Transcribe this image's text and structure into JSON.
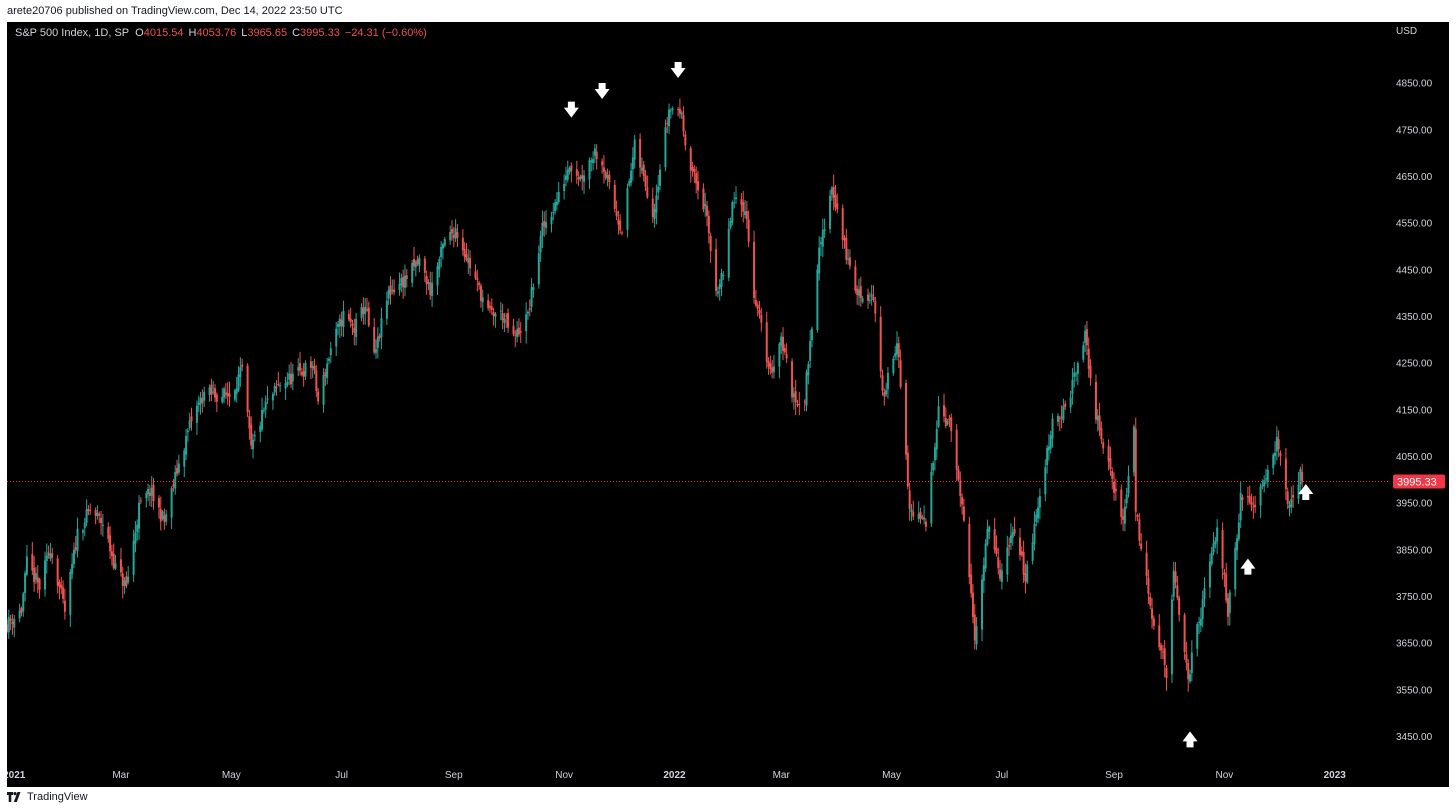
{
  "header": {
    "published": "arete20706 published on TradingView.com, Dec 14, 2022 23:50 UTC"
  },
  "legend": {
    "symbol": "S&P 500 Index, 1D, SP",
    "o_label": "O",
    "o_value": "4015.54",
    "h_label": "H",
    "h_value": "4053.76",
    "l_label": "L",
    "l_value": "3965.65",
    "c_label": "C",
    "c_value": "3995.33",
    "change": "−24.31 (−0.60%)"
  },
  "currency": "USD",
  "footer": {
    "logo_text": "TradingView"
  },
  "colors": {
    "up": "#26a69a",
    "down": "#ef5350",
    "background": "#000000",
    "text": "#d1d4dc",
    "last_price": "#f23645"
  },
  "chart_data": {
    "type": "candlestick",
    "title": "S&P 500 Index, 1D, SP",
    "ylim": [
      3390,
      4950
    ],
    "yticks": [
      3450,
      3550,
      3650,
      3750,
      3850,
      3950,
      4050,
      4150,
      4250,
      4350,
      4450,
      4550,
      4650,
      4750,
      4850
    ],
    "ytick_labels": [
      "3450.00",
      "3550.00",
      "3650.00",
      "3750.00",
      "3850.00",
      "3950.00",
      "4050.00",
      "4150.00",
      "4250.00",
      "4350.00",
      "4450.00",
      "4550.00",
      "4650.00",
      "4750.00",
      "4850.00"
    ],
    "x_range": [
      "2020-12-28",
      "2023-01-31"
    ],
    "xticks": [
      {
        "date": "2021-01-01",
        "label": "2021",
        "bold": true
      },
      {
        "date": "2021-03-01",
        "label": "Mar",
        "bold": false
      },
      {
        "date": "2021-05-01",
        "label": "May",
        "bold": false
      },
      {
        "date": "2021-07-01",
        "label": "Jul",
        "bold": false
      },
      {
        "date": "2021-09-01",
        "label": "Sep",
        "bold": false
      },
      {
        "date": "2021-11-01",
        "label": "Nov",
        "bold": false
      },
      {
        "date": "2022-01-01",
        "label": "2022",
        "bold": true
      },
      {
        "date": "2022-03-01",
        "label": "Mar",
        "bold": false
      },
      {
        "date": "2022-05-01",
        "label": "May",
        "bold": false
      },
      {
        "date": "2022-07-01",
        "label": "Jul",
        "bold": false
      },
      {
        "date": "2022-09-01",
        "label": "Sep",
        "bold": false
      },
      {
        "date": "2022-11-01",
        "label": "Nov",
        "bold": false
      },
      {
        "date": "2023-01-01",
        "label": "2023",
        "bold": true
      }
    ],
    "last_price": 3995.33,
    "last_price_label": "3995.33",
    "closes": [
      [
        "2020-12-28",
        3690
      ],
      [
        "2021-01-05",
        3720
      ],
      [
        "2021-01-08",
        3820
      ],
      [
        "2021-01-15",
        3768
      ],
      [
        "2021-01-21",
        3855
      ],
      [
        "2021-01-29",
        3715
      ],
      [
        "2021-02-05",
        3886
      ],
      [
        "2021-02-12",
        3934
      ],
      [
        "2021-02-19",
        3906
      ],
      [
        "2021-02-26",
        3811
      ],
      [
        "2021-03-04",
        3768
      ],
      [
        "2021-03-11",
        3939
      ],
      [
        "2021-03-17",
        3974
      ],
      [
        "2021-03-25",
        3909
      ],
      [
        "2021-04-01",
        4019
      ],
      [
        "2021-04-09",
        4128
      ],
      [
        "2021-04-16",
        4185
      ],
      [
        "2021-04-23",
        4180
      ],
      [
        "2021-04-30",
        4181
      ],
      [
        "2021-05-07",
        4232
      ],
      [
        "2021-05-12",
        4063
      ],
      [
        "2021-05-20",
        4159
      ],
      [
        "2021-05-28",
        4204
      ],
      [
        "2021-06-07",
        4226
      ],
      [
        "2021-06-15",
        4246
      ],
      [
        "2021-06-18",
        4166
      ],
      [
        "2021-06-25",
        4280
      ],
      [
        "2021-07-02",
        4352
      ],
      [
        "2021-07-08",
        4321
      ],
      [
        "2021-07-14",
        4374
      ],
      [
        "2021-07-19",
        4258
      ],
      [
        "2021-07-27",
        4401
      ],
      [
        "2021-08-05",
        4429
      ],
      [
        "2021-08-13",
        4468
      ],
      [
        "2021-08-19",
        4405
      ],
      [
        "2021-08-27",
        4509
      ],
      [
        "2021-09-02",
        4537
      ],
      [
        "2021-09-10",
        4458
      ],
      [
        "2021-09-20",
        4357
      ],
      [
        "2021-09-28",
        4352
      ],
      [
        "2021-10-04",
        4300
      ],
      [
        "2021-10-12",
        4350
      ],
      [
        "2021-10-20",
        4536
      ],
      [
        "2021-10-29",
        4605
      ],
      [
        "2021-11-04",
        4680
      ],
      [
        "2021-11-10",
        4646
      ],
      [
        "2021-11-18",
        4704
      ],
      [
        "2021-11-22",
        4682
      ],
      [
        "2021-11-30",
        4567
      ],
      [
        "2021-12-03",
        4538
      ],
      [
        "2021-12-10",
        4712
      ],
      [
        "2021-12-17",
        4620
      ],
      [
        "2021-12-20",
        4568
      ],
      [
        "2021-12-29",
        4793
      ],
      [
        "2022-01-04",
        4793
      ],
      [
        "2022-01-10",
        4670
      ],
      [
        "2022-01-18",
        4577
      ],
      [
        "2022-01-24",
        4410
      ],
      [
        "2022-01-28",
        4432
      ],
      [
        "2022-02-02",
        4589
      ],
      [
        "2022-02-09",
        4587
      ],
      [
        "2022-02-14",
        4401
      ],
      [
        "2022-02-23",
        4225
      ],
      [
        "2022-03-01",
        4306
      ],
      [
        "2022-03-08",
        4170
      ],
      [
        "2022-03-14",
        4173
      ],
      [
        "2022-03-21",
        4461
      ],
      [
        "2022-03-29",
        4631
      ],
      [
        "2022-04-06",
        4481
      ],
      [
        "2022-04-12",
        4397
      ],
      [
        "2022-04-21",
        4393
      ],
      [
        "2022-04-26",
        4175
      ],
      [
        "2022-05-04",
        4300
      ],
      [
        "2022-05-11",
        3935
      ],
      [
        "2022-05-20",
        3901
      ],
      [
        "2022-05-27",
        4158
      ],
      [
        "2022-06-03",
        4108
      ],
      [
        "2022-06-10",
        3901
      ],
      [
        "2022-06-16",
        3667
      ],
      [
        "2022-06-24",
        3911
      ],
      [
        "2022-06-30",
        3785
      ],
      [
        "2022-07-08",
        3899
      ],
      [
        "2022-07-14",
        3790
      ],
      [
        "2022-07-22",
        3962
      ],
      [
        "2022-07-29",
        4130
      ],
      [
        "2022-08-05",
        4145
      ],
      [
        "2022-08-16",
        4305
      ],
      [
        "2022-08-22",
        4137
      ],
      [
        "2022-08-29",
        4030
      ],
      [
        "2022-09-06",
        3908
      ],
      [
        "2022-09-12",
        4110
      ],
      [
        "2022-09-13",
        3932
      ],
      [
        "2022-09-23",
        3693
      ],
      [
        "2022-09-30",
        3586
      ],
      [
        "2022-10-04",
        3791
      ],
      [
        "2022-10-12",
        3577
      ],
      [
        "2022-10-21",
        3752
      ],
      [
        "2022-10-28",
        3901
      ],
      [
        "2022-11-03",
        3720
      ],
      [
        "2022-11-10",
        3956
      ],
      [
        "2022-11-17",
        3946
      ],
      [
        "2022-11-25",
        4026
      ],
      [
        "2022-11-30",
        4080
      ],
      [
        "2022-12-07",
        3934
      ],
      [
        "2022-12-12",
        3990
      ],
      [
        "2022-12-13",
        4019
      ],
      [
        "2022-12-14",
        3995
      ]
    ],
    "annotations": [
      {
        "type": "arrow-down",
        "date": "2021-11-05",
        "price": 4790
      },
      {
        "type": "arrow-down",
        "date": "2021-11-22",
        "price": 4830
      },
      {
        "type": "arrow-down",
        "date": "2022-01-03",
        "price": 4875
      },
      {
        "type": "arrow-up",
        "date": "2022-10-13",
        "price": 3445
      },
      {
        "type": "arrow-up",
        "date": "2022-11-14",
        "price": 3815
      },
      {
        "type": "arrow-up",
        "date": "2022-12-16",
        "price": 3975
      }
    ]
  }
}
